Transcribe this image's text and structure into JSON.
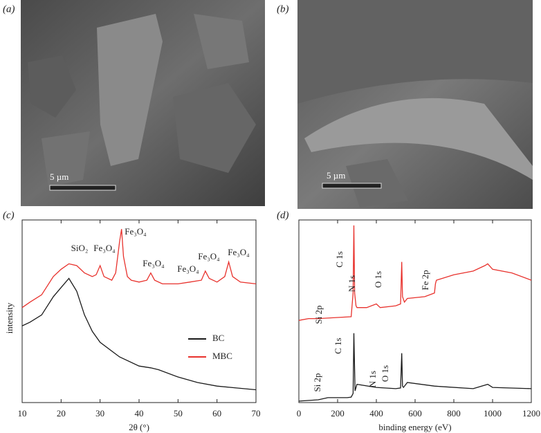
{
  "panels": {
    "a": {
      "label": "(a)",
      "scale_bar": "5 µm"
    },
    "b": {
      "label": "(b)",
      "scale_bar": "5 µm"
    }
  },
  "chart_data": [
    {
      "type": "line",
      "panel_label": "(c)",
      "x_label": "2θ (°)",
      "y_label": "intensity",
      "xlim": [
        10,
        70
      ],
      "xticks": [
        10,
        20,
        30,
        40,
        50,
        60,
        70
      ],
      "ylim": [
        0,
        100
      ],
      "legend": "center-right",
      "series": [
        {
          "name": "BC",
          "color": "#1a1a1a",
          "x": [
            10,
            12,
            15,
            18,
            20,
            22,
            24,
            26,
            28,
            30,
            35,
            40,
            43,
            45,
            50,
            55,
            60,
            65,
            70
          ],
          "values": [
            42,
            44,
            48,
            58,
            63,
            68,
            61,
            48,
            39,
            33,
            25,
            20,
            19,
            18,
            14,
            11,
            9,
            8,
            7
          ]
        },
        {
          "name": "MBC",
          "color": "#e8312c",
          "x": [
            10,
            12,
            15,
            18,
            20,
            22,
            24,
            26,
            28,
            29,
            30,
            31,
            33,
            34,
            35,
            35.5,
            36,
            37,
            38,
            40,
            42,
            43,
            44,
            46,
            50,
            53,
            56,
            57,
            58,
            60,
            62,
            63,
            64,
            66,
            70
          ],
          "values": [
            52,
            55,
            59,
            69,
            73,
            76,
            75,
            71,
            69,
            70,
            75,
            69,
            67,
            71,
            88,
            95,
            80,
            69,
            67,
            66,
            67,
            71,
            67,
            65,
            65,
            66,
            67,
            72,
            68,
            66,
            69,
            77,
            69,
            66,
            65
          ]
        }
      ],
      "annotations": [
        "SiO₂",
        "Fe₃O₄",
        "Fe₃O₄",
        "Fe₃O₄",
        "Fe₃O₄",
        "Fe₃O₄",
        "Fe₃O₄"
      ]
    },
    {
      "type": "line",
      "panel_label": "(d)",
      "x_label": "binding energy (eV)",
      "xlim": [
        0,
        1200
      ],
      "xticks": [
        0,
        200,
        400,
        600,
        800,
        1000,
        1200
      ],
      "ylim": [
        0,
        100
      ],
      "series": [
        {
          "color": "#e8312c",
          "x": [
            0,
            50,
            100,
            200,
            270,
            280,
            284,
            288,
            295,
            300,
            350,
            400,
            420,
            500,
            525,
            531,
            535,
            545,
            560,
            650,
            700,
            705,
            710,
            800,
            900,
            960,
            975,
            1000,
            1100,
            1200
          ],
          "values": [
            45,
            46,
            46,
            46.6,
            47,
            60,
            97,
            60,
            53,
            52,
            52,
            54,
            52,
            53,
            54,
            77,
            58,
            55,
            57,
            58,
            60,
            65,
            67,
            70,
            72,
            75,
            76,
            73,
            71,
            67
          ]
        },
        {
          "color": "#1a1a1a",
          "x": [
            0,
            100,
            150,
            250,
            270,
            280,
            284,
            290,
            300,
            400,
            500,
            525,
            531,
            535,
            540,
            560,
            700,
            900,
            975,
            1000,
            1200
          ],
          "values": [
            0.8,
            1.5,
            2.7,
            2.7,
            3,
            5,
            38,
            6.4,
            10,
            8.3,
            7.6,
            8,
            27,
            9,
            8.3,
            11,
            9,
            7.6,
            10,
            8.3,
            7.6
          ]
        }
      ],
      "annotations": [
        "Si 2p",
        "C 1s",
        "N 1s",
        "O 1s",
        "Fe 2p",
        "Si 2p",
        "C 1s",
        "N 1s",
        "O 1s"
      ]
    }
  ]
}
